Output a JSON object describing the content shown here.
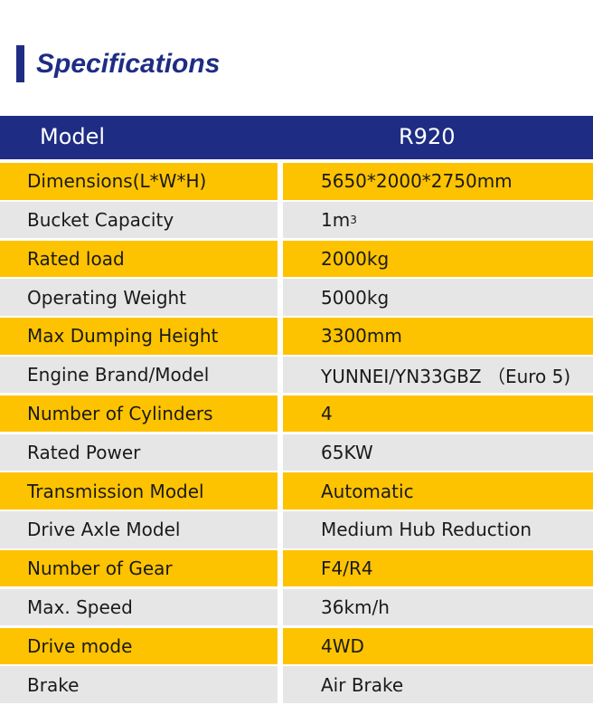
{
  "title": "Specifications",
  "header": {
    "label": "Model",
    "value": "R920"
  },
  "colors": {
    "brand_blue": "#1e2d83",
    "row_yellow": "#fdc300",
    "row_gray": "#e6e6e6"
  },
  "rows": [
    {
      "label": "Dimensions(L*W*H)",
      "value": "5650*2000*2750mm"
    },
    {
      "label": "Bucket Capacity",
      "value": "1m",
      "sup": "3"
    },
    {
      "label": "Rated load",
      "value": "2000kg"
    },
    {
      "label": "Operating Weight",
      "value": "5000kg"
    },
    {
      "label": "Max Dumping Height",
      "value": "3300mm"
    },
    {
      "label": "Engine Brand/Model",
      "value": "YUNNEI/YN33GBZ （Euro 5)"
    },
    {
      "label": "Number of Cylinders",
      "value": "4"
    },
    {
      "label": "Rated Power",
      "value": "65KW"
    },
    {
      "label": "Transmission Model",
      "value": "Automatic"
    },
    {
      "label": "Drive Axle Model",
      "value": "Medium Hub Reduction"
    },
    {
      "label": "Number of Gear",
      "value": "F4/R4"
    },
    {
      "label": "Max. Speed",
      "value": "36km/h"
    },
    {
      "label": "Drive mode",
      "value": "4WD"
    },
    {
      "label": "Brake",
      "value": "Air Brake"
    }
  ]
}
